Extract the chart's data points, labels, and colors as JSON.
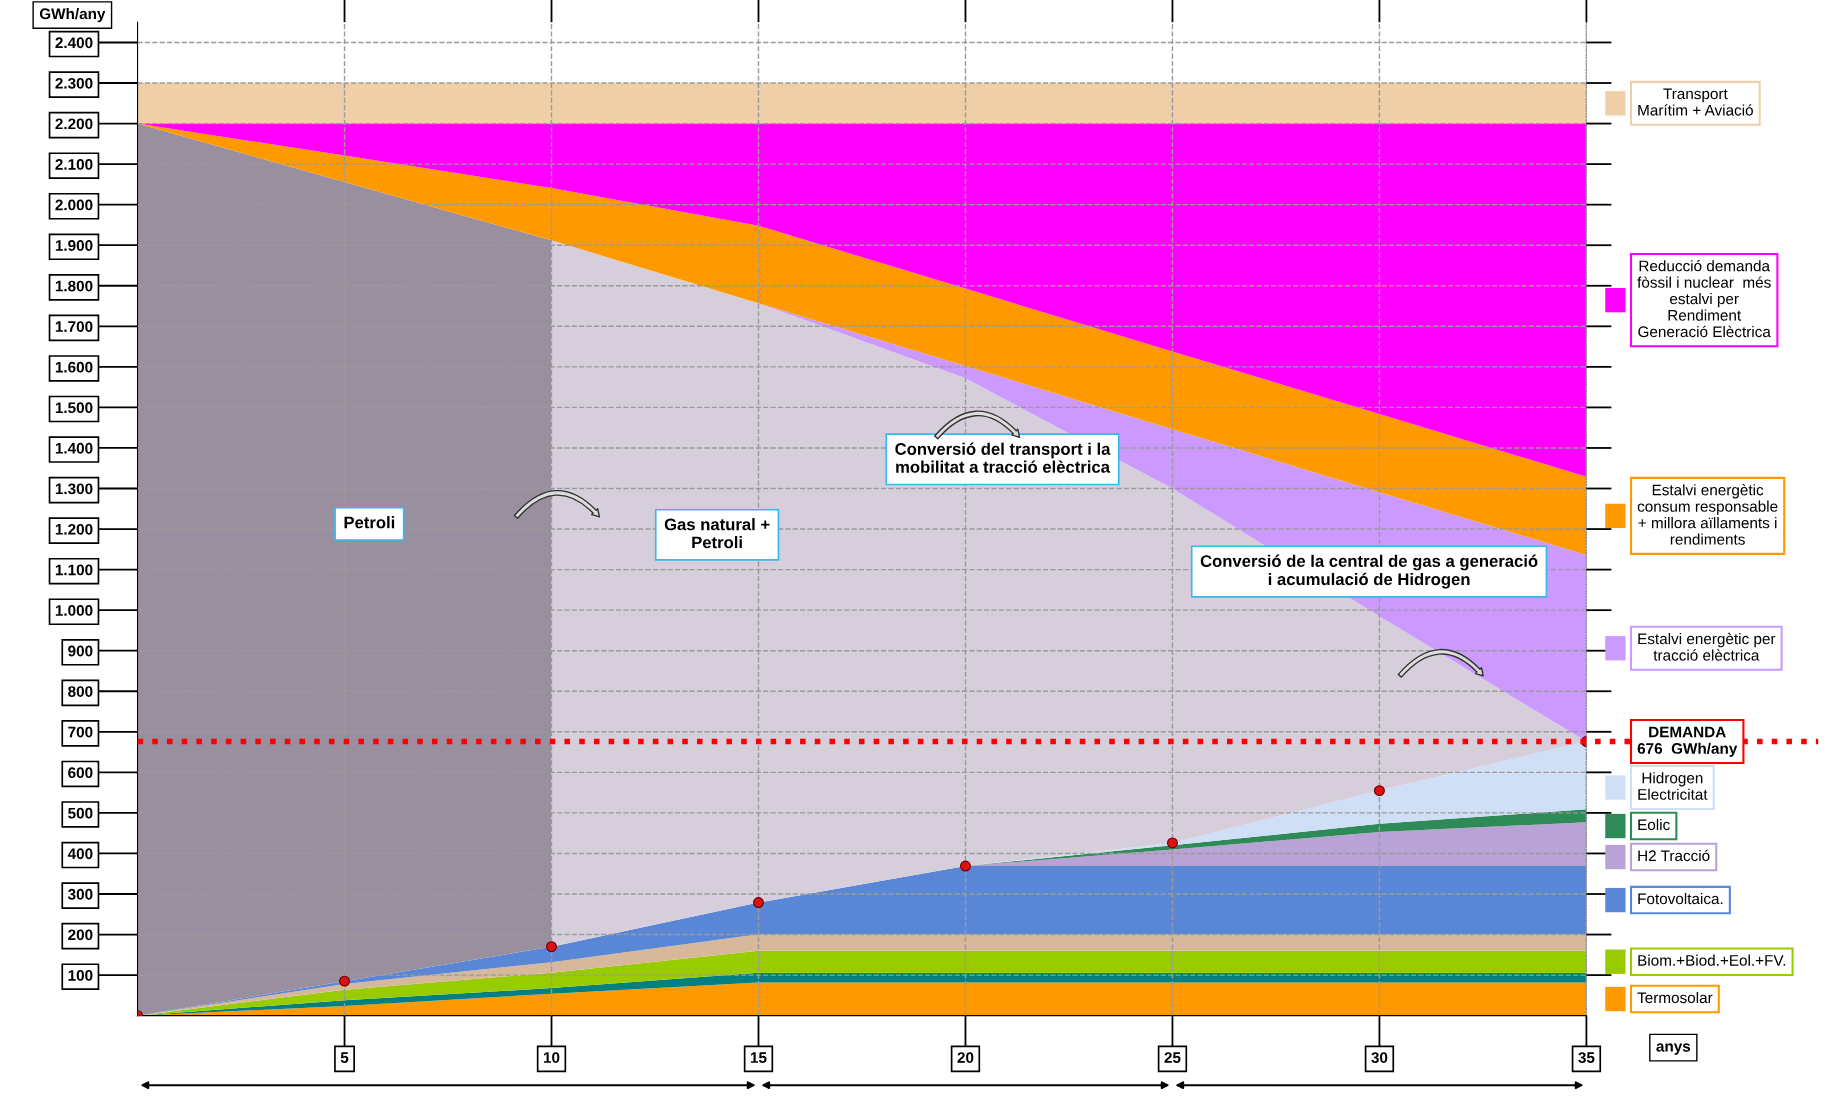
{
  "chart_data": {
    "type": "area",
    "stacked": true,
    "ylabel": "GWh/any",
    "xlabel": "anys",
    "x": [
      0,
      5,
      10,
      10,
      15,
      20,
      25,
      30,
      35
    ],
    "xlim": [
      0,
      35
    ],
    "xticks": [
      5,
      10,
      15,
      20,
      25,
      30,
      35
    ],
    "ylim": [
      0,
      2450
    ],
    "yticks": [
      100,
      200,
      300,
      400,
      500,
      600,
      700,
      800,
      900,
      {
        "value": 1000,
        "label": "1.000"
      },
      {
        "value": 1100,
        "label": "1.100"
      },
      {
        "value": 1200,
        "label": "1.200"
      },
      {
        "value": 1300,
        "label": "1.300"
      },
      {
        "value": 1400,
        "label": "1.400"
      },
      {
        "value": 1500,
        "label": "1.500"
      },
      {
        "value": 1600,
        "label": "1.600"
      },
      {
        "value": 1700,
        "label": "1.700"
      },
      {
        "value": 1800,
        "label": "1.800"
      },
      {
        "value": 1900,
        "label": "1.900"
      },
      {
        "value": 2000,
        "label": "2.000"
      },
      {
        "value": 2100,
        "label": "2.100"
      },
      {
        "value": 2200,
        "label": "2.200"
      },
      {
        "value": 2300,
        "label": "2.300"
      },
      {
        "value": 2400,
        "label": "2.400"
      }
    ],
    "grid": true,
    "series": [
      {
        "name": "Termosolar",
        "color": "#ff9900",
        "values": [
          0,
          24,
          54,
          54,
          82,
          82,
          82,
          82,
          82
        ]
      },
      {
        "color": "#008080",
        "values": [
          0,
          14,
          14,
          14,
          24,
          24,
          24,
          24,
          24
        ]
      },
      {
        "name": "Biom.+Biod.+Eol.+FV.",
        "color": "#99cc00",
        "values": [
          0,
          26,
          38,
          38,
          54,
          54,
          54,
          54,
          54
        ]
      },
      {
        "color": "#d8b89a",
        "values": [
          0,
          14,
          26,
          26,
          41,
          41,
          41,
          41,
          41
        ]
      },
      {
        "name": "Fotovoltaica.",
        "color": "#5a86d6",
        "values": [
          0,
          7,
          38,
          38,
          78,
          168,
          168,
          168,
          168
        ]
      },
      {
        "name": "H2 Tracció",
        "color": "#b9a2d6",
        "values": [
          0,
          0,
          0,
          0,
          0,
          0,
          41,
          84,
          108
        ]
      },
      {
        "name": "Eolic",
        "color": "#2e8b57",
        "values": [
          0,
          0,
          0,
          0,
          0,
          0,
          10,
          20,
          32
        ]
      },
      {
        "name": "Hidrogen\nElectricitat",
        "color": "#cfdff5",
        "values": [
          0,
          0,
          0,
          0,
          0,
          0,
          6,
          82,
          167
        ]
      },
      {
        "color": "#9a8f9e",
        "values": [
          2200,
          1971,
          1742,
          null,
          null,
          null,
          null,
          null,
          null
        ]
      },
      {
        "color": "#d6cfdb",
        "values": [
          null,
          null,
          null,
          1742,
          1478,
          1203,
          874,
          430,
          0
        ]
      },
      {
        "name": "Estalvi energètic per\ntracció elèctrica",
        "color": "#cc99ff",
        "values": [
          0,
          0,
          0,
          0,
          0,
          30,
          146,
          306,
          460
        ]
      },
      {
        "name": "Estalvi energètic\nconsum responsable\n+ millora aïllaments i\nrendiments",
        "color": "#ff9900",
        "values": [
          0,
          65,
          129,
          129,
          191,
          191,
          192,
          193,
          193
        ]
      },
      {
        "name": "Reducció demanda\nfòssil i nuclear  més\nestalvi per\nRendiment\nGeneració Elèctrica",
        "color": "#ff00ff",
        "values": [
          0,
          79,
          159,
          159,
          252,
          407,
          562,
          716,
          871
        ]
      },
      {
        "name": "Transport\nMarítim + Aviació",
        "color": "#efcfa8",
        "values": [
          100,
          100,
          100,
          100,
          100,
          100,
          100,
          100,
          100
        ]
      },
      {
        "type": "scatter",
        "color": "#dd1111",
        "values": [
          0,
          85,
          170,
          null,
          279,
          369,
          426,
          555,
          676
        ]
      }
    ],
    "ref_lines": [
      {
        "axis": "y",
        "value": 676,
        "label": "DEMANDA\n676  GWh/any",
        "color": "#ff0000",
        "line_style": "dotted"
      }
    ],
    "legend": "right",
    "annotations": [
      "Petroli",
      "Gas natural +\nPetroli",
      "Conversió del transport i la\nmobilitat a tracció elèctrica",
      "Conversió de la central de gas a generació\ni acumulació de Hidrogen"
    ]
  }
}
